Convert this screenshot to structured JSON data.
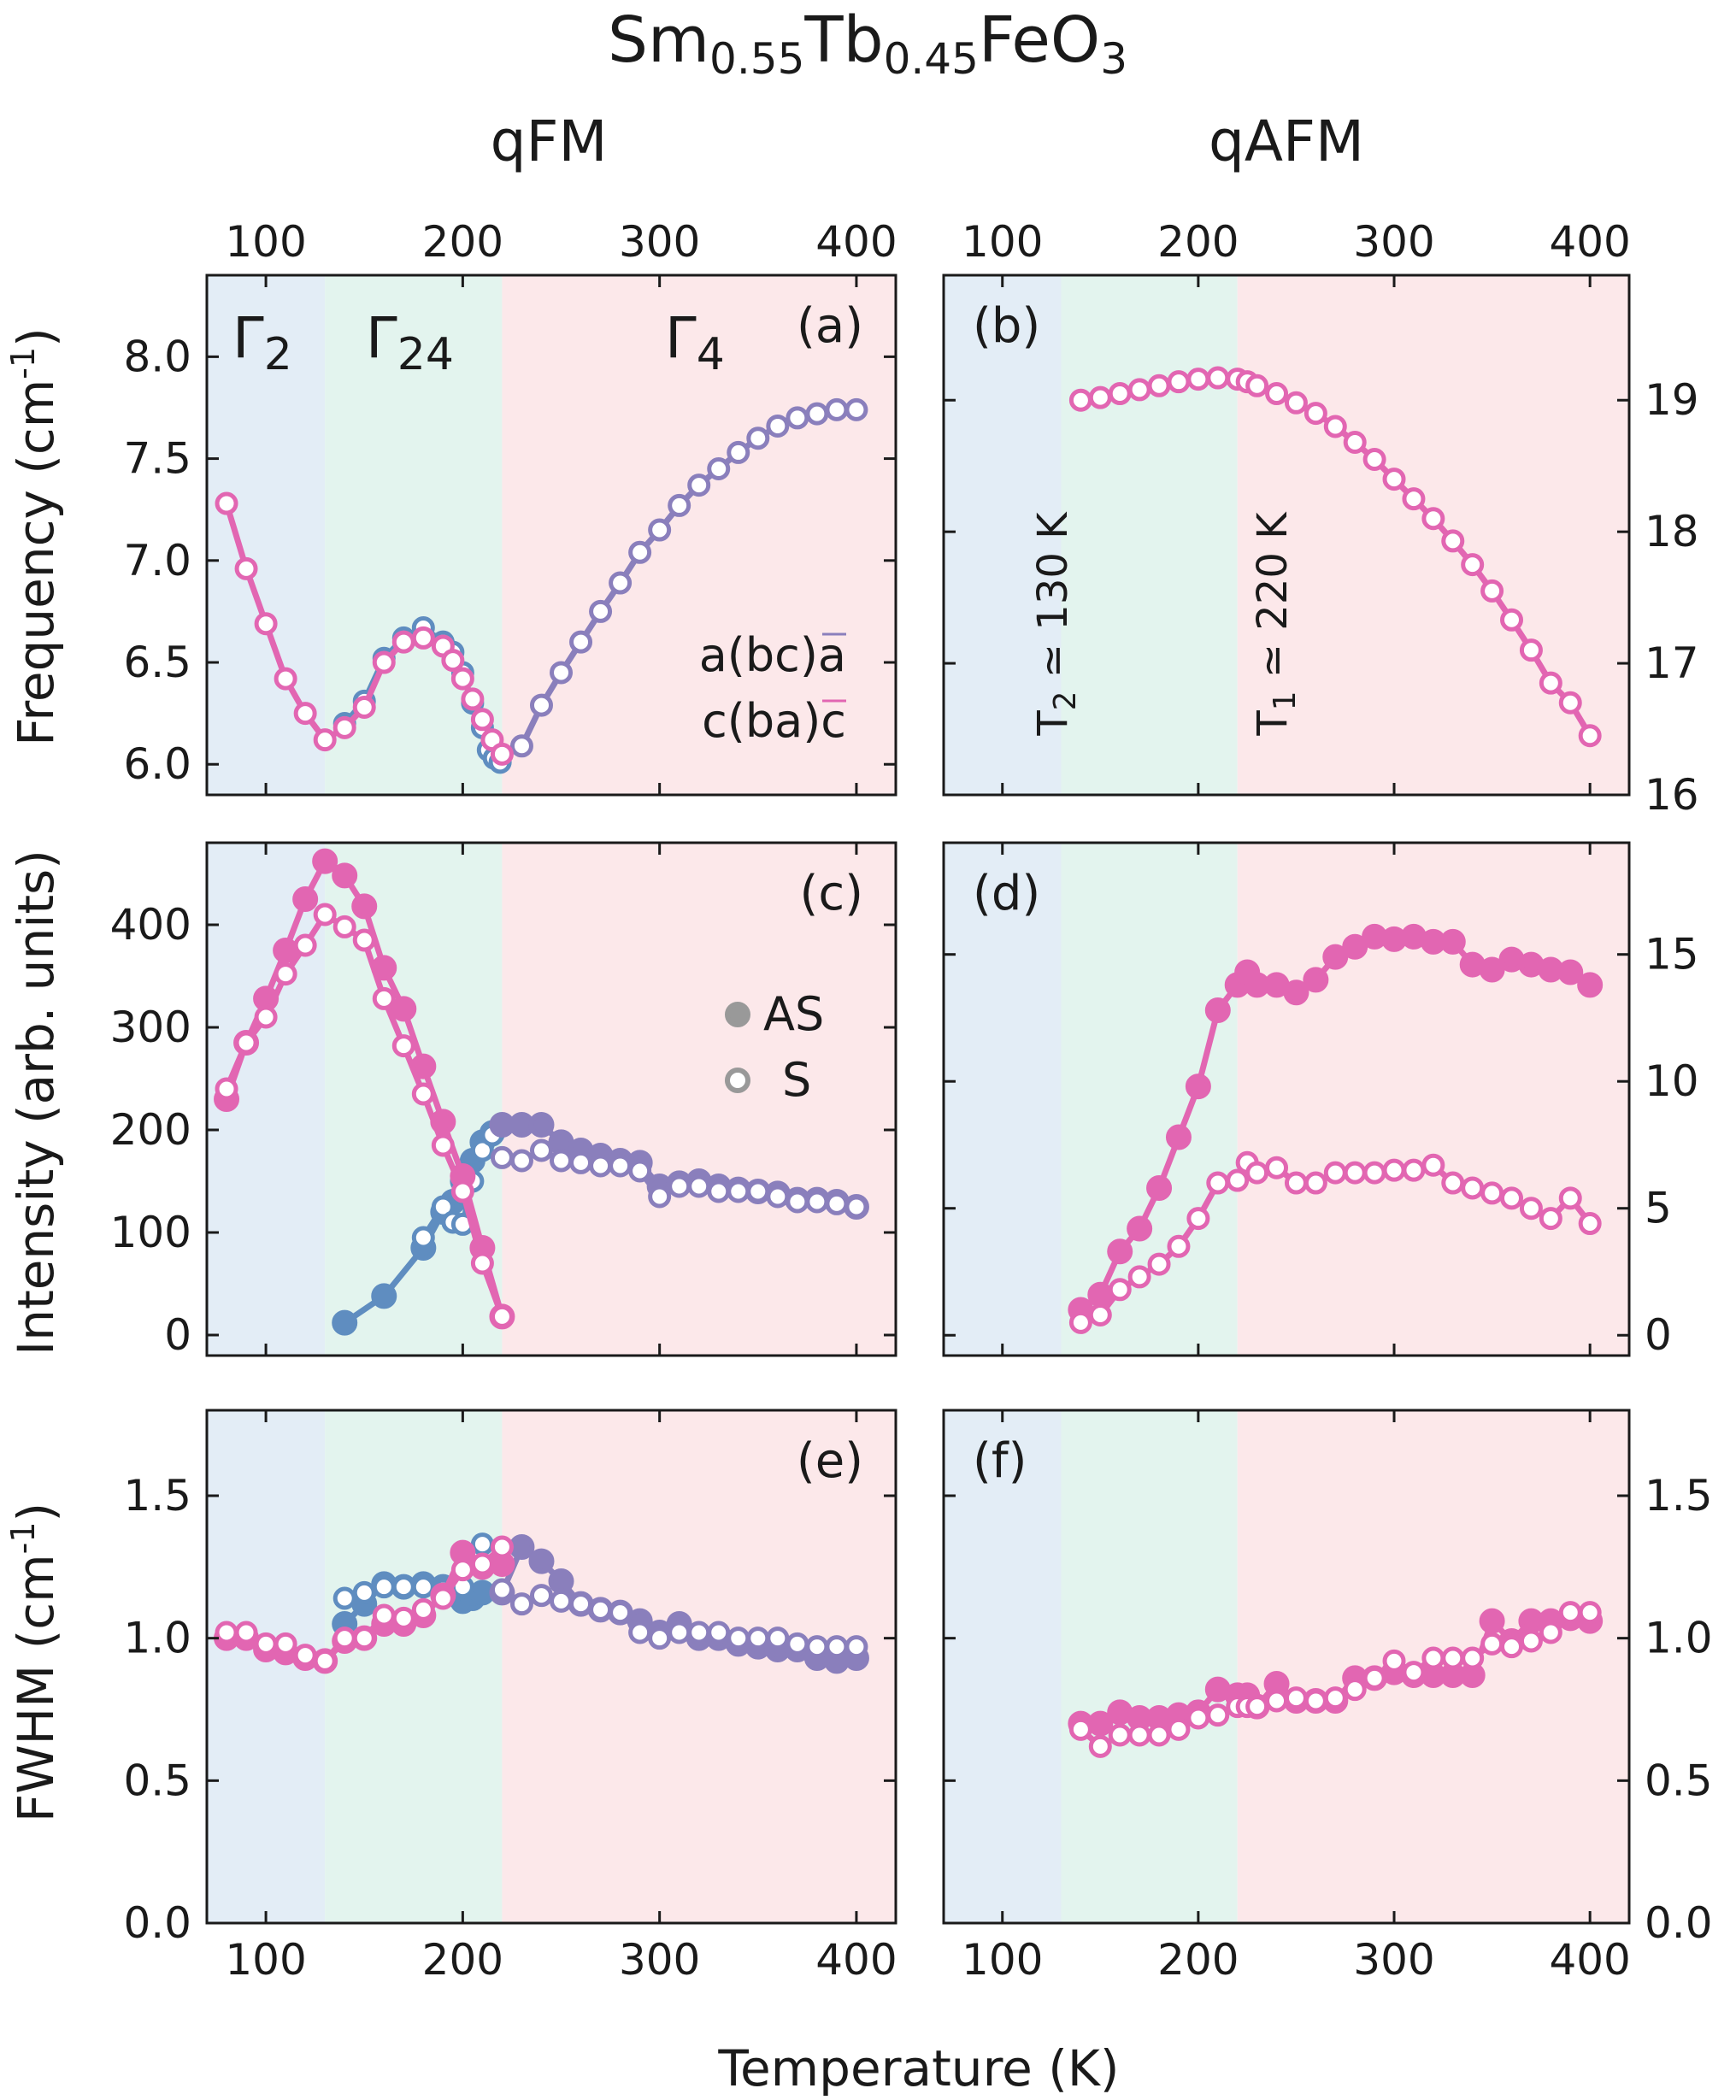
{
  "title": {
    "base": "Sm",
    "sub1": "0.55",
    "mid": "Tb",
    "sub2": "0.45",
    "tail": "FeO",
    "sub3": "3"
  },
  "columns": {
    "left": "qFM",
    "right": "qAFM"
  },
  "xlabel": "Temperature (K)",
  "ylabels": {
    "a": {
      "main": "Frequency (cm",
      "sup": "-1",
      "close": ")"
    },
    "c": {
      "main": "Intensity (arb. units)"
    },
    "e": {
      "main": "FWHM (cm",
      "sup": "-1",
      "close": ")"
    }
  },
  "phases": {
    "gamma2": {
      "sym": "Γ",
      "sub": "2",
      "color": "#2f5f9e"
    },
    "gamma24": {
      "sym": "Γ",
      "sub": "24",
      "color": "#2c9a78"
    },
    "gamma4": {
      "sym": "Γ",
      "sub": "4",
      "color": "#c3252d"
    }
  },
  "transitions": {
    "t2": {
      "pre": "T",
      "sub": "2",
      "post": " ≃ 130 K"
    },
    "t1": {
      "pre": "T",
      "sub": "1",
      "post": " ≃ 220 K"
    }
  },
  "legend_a": {
    "series1": "a(bc)a",
    "series2": "c(ba)c"
  },
  "legend_c": {
    "filled": "AS",
    "open": "S"
  },
  "colors": {
    "blue": "#5f8dc0",
    "pink": "#e266b2",
    "mix": "#8a7fbc",
    "bg_blue": "#e3edf6",
    "bg_green": "#e3f4ee",
    "bg_pink": "#fce8ea",
    "legend_gray": "#999999"
  },
  "chart_data": [
    {
      "id": "a",
      "type": "scatter",
      "label": "(a)",
      "xlim": [
        70,
        420
      ],
      "ylim": [
        5.85,
        8.4
      ],
      "xticks": [
        100,
        200,
        300,
        400
      ],
      "yticks": [
        6.0,
        6.5,
        7.0,
        7.5,
        8.0
      ],
      "ytick_labels": [
        "6.0",
        "6.5",
        "7.0",
        "7.5",
        "8.0"
      ],
      "series": [
        {
          "name": "a(bc)a",
          "color": "blue",
          "marker": "open",
          "x": [
            140,
            150,
            160,
            170,
            180,
            190,
            195,
            200,
            205,
            210,
            213,
            216,
            219
          ],
          "y": [
            6.2,
            6.31,
            6.52,
            6.62,
            6.67,
            6.6,
            6.55,
            6.45,
            6.3,
            6.18,
            6.07,
            6.03,
            6.01
          ]
        },
        {
          "name": "a(bc)a",
          "color": "mix",
          "marker": "open",
          "x": [
            230,
            240,
            250,
            260,
            270,
            280,
            290,
            300,
            310,
            320,
            330,
            340,
            350,
            360,
            370,
            380,
            390,
            400
          ],
          "y": [
            6.09,
            6.29,
            6.45,
            6.6,
            6.75,
            6.89,
            7.04,
            7.15,
            7.27,
            7.37,
            7.45,
            7.53,
            7.6,
            7.66,
            7.7,
            7.72,
            7.74,
            7.74
          ]
        },
        {
          "name": "c(ba)c",
          "color": "pink",
          "marker": "open",
          "x": [
            80,
            90,
            100,
            110,
            120,
            130,
            140,
            150,
            160,
            170,
            180,
            190,
            195,
            200,
            205,
            210,
            215,
            220
          ],
          "y": [
            7.28,
            6.96,
            6.69,
            6.42,
            6.25,
            6.12,
            6.18,
            6.28,
            6.5,
            6.6,
            6.62,
            6.58,
            6.51,
            6.42,
            6.32,
            6.22,
            6.12,
            6.05
          ]
        }
      ]
    },
    {
      "id": "b",
      "type": "scatter",
      "label": "(b)",
      "xlim": [
        70,
        420
      ],
      "ylim": [
        16.0,
        19.95
      ],
      "xticks": [
        100,
        200,
        300,
        400
      ],
      "yticks": [
        16,
        17,
        18,
        19
      ],
      "yticks_right": true,
      "ytick_labels": [
        "16",
        "17",
        "18",
        "19"
      ],
      "series": [
        {
          "name": "c(ba)c",
          "color": "pink",
          "marker": "open",
          "x": [
            140,
            150,
            160,
            170,
            180,
            190,
            200,
            210,
            220,
            225,
            230,
            240,
            250,
            260,
            270,
            280,
            290,
            300,
            310,
            320,
            330,
            340,
            350,
            360,
            370,
            380,
            390,
            400
          ],
          "y": [
            19.0,
            19.02,
            19.05,
            19.08,
            19.11,
            19.14,
            19.16,
            19.17,
            19.16,
            19.14,
            19.11,
            19.05,
            18.98,
            18.9,
            18.8,
            18.68,
            18.55,
            18.4,
            18.25,
            18.1,
            17.93,
            17.75,
            17.55,
            17.33,
            17.1,
            16.85,
            16.7,
            16.45
          ]
        }
      ]
    },
    {
      "id": "c",
      "type": "scatter",
      "label": "(c)",
      "xlim": [
        70,
        420
      ],
      "ylim": [
        -20,
        480
      ],
      "xticks": [
        100,
        200,
        300,
        400
      ],
      "yticks": [
        0,
        100,
        200,
        300,
        400
      ],
      "ytick_labels": [
        "0",
        "100",
        "200",
        "300",
        "400"
      ],
      "series": [
        {
          "name": "AS",
          "color": "blue",
          "marker": "filled",
          "x": [
            140,
            160,
            180,
            190,
            195,
            200,
            205,
            210,
            215
          ],
          "y": [
            12,
            38,
            85,
            120,
            130,
            150,
            170,
            188,
            197
          ]
        },
        {
          "name": "S",
          "color": "blue",
          "marker": "open",
          "x": [
            180,
            190,
            195,
            200,
            205,
            210,
            215
          ],
          "y": [
            95,
            125,
            110,
            108,
            150,
            180,
            195
          ]
        },
        {
          "name": "AS",
          "color": "mix",
          "marker": "filled",
          "x": [
            220,
            230,
            240,
            250,
            260,
            270,
            280,
            290,
            300,
            310,
            320,
            330,
            340,
            350,
            360,
            370,
            380,
            390,
            400
          ],
          "y": [
            205,
            205,
            205,
            188,
            180,
            175,
            170,
            168,
            145,
            148,
            150,
            145,
            142,
            140,
            138,
            132,
            132,
            130,
            125
          ]
        },
        {
          "name": "S",
          "color": "mix",
          "marker": "open",
          "x": [
            220,
            230,
            240,
            250,
            260,
            270,
            280,
            290,
            300,
            310,
            320,
            330,
            340,
            350,
            360,
            370,
            380,
            390,
            400
          ],
          "y": [
            173,
            170,
            180,
            170,
            168,
            165,
            165,
            160,
            135,
            145,
            145,
            140,
            140,
            140,
            135,
            130,
            130,
            128,
            125
          ]
        },
        {
          "name": "AS",
          "color": "pink",
          "marker": "filled",
          "x": [
            80,
            90,
            100,
            110,
            120,
            130,
            140,
            150,
            160,
            170,
            180,
            190,
            200,
            210,
            220
          ],
          "y": [
            230,
            285,
            328,
            375,
            425,
            462,
            448,
            418,
            358,
            318,
            262,
            208,
            155,
            85,
            18
          ]
        },
        {
          "name": "S",
          "color": "pink",
          "marker": "open",
          "x": [
            80,
            90,
            100,
            110,
            120,
            130,
            140,
            150,
            160,
            170,
            180,
            190,
            200,
            210,
            220
          ],
          "y": [
            240,
            285,
            310,
            352,
            380,
            410,
            398,
            385,
            328,
            282,
            235,
            185,
            140,
            70,
            18
          ]
        }
      ]
    },
    {
      "id": "d",
      "type": "scatter",
      "label": "(d)",
      "xlim": [
        70,
        420
      ],
      "ylim": [
        -0.8,
        19.4
      ],
      "xticks": [
        100,
        200,
        300,
        400
      ],
      "yticks": [
        0,
        5,
        10,
        15
      ],
      "yticks_right": true,
      "ytick_labels": [
        "0",
        "5",
        "10",
        "15"
      ],
      "series": [
        {
          "name": "AS",
          "color": "pink",
          "marker": "filled",
          "x": [
            140,
            150,
            160,
            170,
            180,
            190,
            200,
            210,
            220,
            225,
            230,
            240,
            250,
            260,
            270,
            280,
            290,
            300,
            310,
            320,
            330,
            340,
            350,
            360,
            370,
            380,
            390,
            400
          ],
          "y": [
            1.0,
            1.6,
            3.3,
            4.2,
            5.8,
            7.8,
            9.8,
            12.8,
            13.8,
            14.3,
            13.8,
            13.8,
            13.5,
            14.0,
            14.9,
            15.3,
            15.7,
            15.6,
            15.7,
            15.5,
            15.5,
            14.6,
            14.4,
            14.8,
            14.6,
            14.4,
            14.3,
            13.8
          ]
        },
        {
          "name": "S",
          "color": "pink",
          "marker": "open",
          "x": [
            140,
            150,
            160,
            170,
            180,
            190,
            200,
            210,
            220,
            225,
            230,
            240,
            250,
            260,
            270,
            280,
            290,
            300,
            310,
            320,
            330,
            340,
            350,
            360,
            370,
            380,
            390,
            400
          ],
          "y": [
            0.5,
            0.8,
            1.8,
            2.3,
            2.8,
            3.5,
            4.6,
            6.0,
            6.1,
            6.8,
            6.4,
            6.6,
            6.0,
            6.0,
            6.4,
            6.4,
            6.4,
            6.5,
            6.5,
            6.7,
            6.0,
            5.8,
            5.6,
            5.4,
            5.0,
            4.6,
            5.4,
            4.4
          ]
        }
      ]
    },
    {
      "id": "e",
      "type": "scatter",
      "label": "(e)",
      "xlim": [
        70,
        420
      ],
      "ylim": [
        0.0,
        1.8
      ],
      "xticks": [
        100,
        200,
        300,
        400
      ],
      "yticks": [
        0.0,
        0.5,
        1.0,
        1.5
      ],
      "ytick_labels": [
        "0.0",
        "0.5",
        "1.0",
        "1.5"
      ],
      "series": [
        {
          "name": "AS",
          "color": "blue",
          "marker": "filled",
          "x": [
            140,
            150,
            160,
            170,
            180,
            190,
            200,
            205,
            210
          ],
          "y": [
            1.05,
            1.12,
            1.19,
            1.18,
            1.19,
            1.18,
            1.13,
            1.14,
            1.16
          ]
        },
        {
          "name": "S",
          "color": "blue",
          "marker": "open",
          "x": [
            140,
            150,
            160,
            170,
            180,
            190,
            200,
            205,
            210
          ],
          "y": [
            1.14,
            1.16,
            1.18,
            1.18,
            1.18,
            1.17,
            1.18,
            1.29,
            1.33
          ]
        },
        {
          "name": "AS",
          "color": "mix",
          "marker": "filled",
          "x": [
            220,
            230,
            240,
            250,
            260,
            270,
            280,
            290,
            300,
            310,
            320,
            330,
            340,
            350,
            360,
            370,
            380,
            390,
            400
          ],
          "y": [
            1.16,
            1.32,
            1.27,
            1.2,
            1.12,
            1.1,
            1.09,
            1.06,
            1.02,
            1.05,
            1.0,
            1.0,
            0.98,
            0.97,
            0.96,
            0.96,
            0.93,
            0.92,
            0.93
          ]
        },
        {
          "name": "S",
          "color": "mix",
          "marker": "open",
          "x": [
            220,
            230,
            240,
            250,
            260,
            270,
            280,
            290,
            300,
            310,
            320,
            330,
            340,
            350,
            360,
            370,
            380,
            390,
            400
          ],
          "y": [
            1.17,
            1.12,
            1.15,
            1.13,
            1.12,
            1.1,
            1.09,
            1.02,
            1.0,
            1.02,
            1.02,
            1.02,
            1.0,
            1.0,
            1.0,
            0.98,
            0.97,
            0.97,
            0.97
          ]
        },
        {
          "name": "AS",
          "color": "pink",
          "marker": "filled",
          "x": [
            80,
            90,
            100,
            110,
            120,
            130,
            140,
            150,
            160,
            170,
            180,
            190,
            200,
            210,
            220
          ],
          "y": [
            1.0,
            1.0,
            0.96,
            0.95,
            0.93,
            0.92,
            0.99,
            1.0,
            1.05,
            1.05,
            1.08,
            1.15,
            1.3,
            1.25,
            1.26
          ]
        },
        {
          "name": "S",
          "color": "pink",
          "marker": "open",
          "x": [
            80,
            90,
            100,
            110,
            120,
            130,
            140,
            150,
            160,
            170,
            180,
            190,
            200,
            210,
            220
          ],
          "y": [
            1.02,
            1.02,
            0.98,
            0.98,
            0.94,
            0.92,
            1.0,
            1.0,
            1.08,
            1.07,
            1.1,
            1.14,
            1.24,
            1.26,
            1.32
          ]
        }
      ]
    },
    {
      "id": "f",
      "type": "scatter",
      "label": "(f)",
      "xlim": [
        70,
        420
      ],
      "ylim": [
        0.0,
        1.8
      ],
      "xticks": [
        100,
        200,
        300,
        400
      ],
      "yticks": [
        0.0,
        0.5,
        1.0,
        1.5
      ],
      "yticks_right": true,
      "ytick_labels": [
        "0.0",
        "0.5",
        "1.0",
        "1.5"
      ],
      "series": [
        {
          "name": "AS",
          "color": "pink",
          "marker": "filled",
          "x": [
            140,
            150,
            160,
            170,
            180,
            190,
            200,
            210,
            220,
            225,
            230,
            240,
            250,
            260,
            270,
            280,
            290,
            300,
            310,
            320,
            330,
            340,
            350,
            360,
            370,
            380,
            390,
            400
          ],
          "y": [
            0.7,
            0.7,
            0.74,
            0.72,
            0.72,
            0.73,
            0.74,
            0.82,
            0.8,
            0.8,
            0.76,
            0.84,
            0.78,
            0.78,
            0.78,
            0.86,
            0.86,
            0.88,
            0.87,
            0.87,
            0.87,
            0.87,
            1.06,
            0.99,
            1.06,
            1.06,
            1.07,
            1.06
          ]
        },
        {
          "name": "S",
          "color": "pink",
          "marker": "open",
          "x": [
            140,
            150,
            160,
            170,
            180,
            190,
            200,
            210,
            220,
            225,
            230,
            240,
            250,
            260,
            270,
            280,
            290,
            300,
            310,
            320,
            330,
            340,
            350,
            360,
            370,
            380,
            390,
            400
          ],
          "y": [
            0.68,
            0.62,
            0.66,
            0.66,
            0.66,
            0.68,
            0.72,
            0.73,
            0.76,
            0.76,
            0.76,
            0.78,
            0.79,
            0.78,
            0.79,
            0.82,
            0.86,
            0.92,
            0.88,
            0.93,
            0.93,
            0.93,
            0.98,
            0.97,
            0.99,
            1.02,
            1.09,
            1.09
          ]
        }
      ]
    }
  ]
}
